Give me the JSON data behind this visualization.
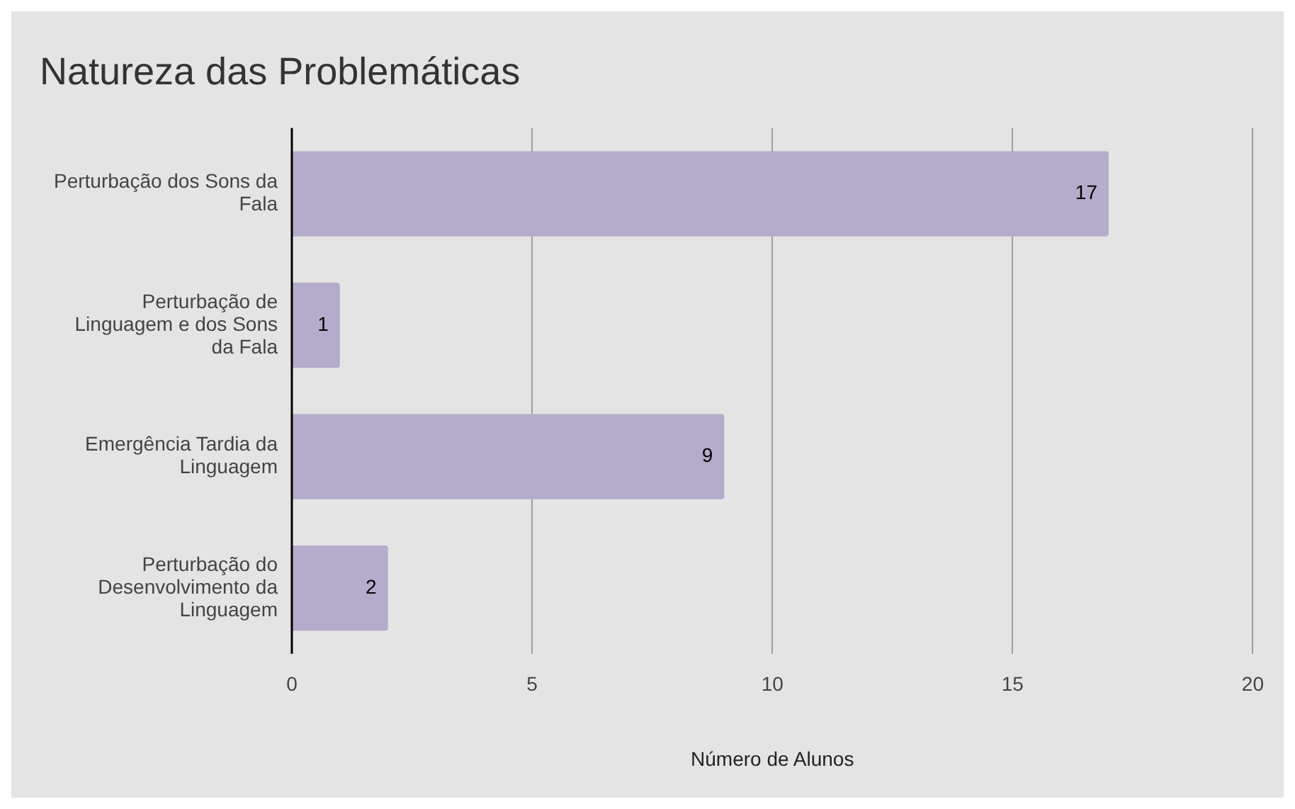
{
  "chart_data": {
    "type": "bar",
    "orientation": "horizontal",
    "title": "Natureza das Problemáticas",
    "xlabel": "Número de Alunos",
    "categories": [
      "Perturbação dos Sons da Fala",
      "Perturbação de Linguagem e dos Sons da Fala",
      "Emergência Tardia da Linguagem",
      "Perturbação do Desenvolvimento da Linguagem"
    ],
    "values": [
      17,
      1,
      9,
      2
    ],
    "color": "#b4acca",
    "xlim": [
      0,
      20
    ],
    "xticks": [
      0,
      5,
      10,
      15,
      20
    ],
    "grid": "x",
    "data_labels": true,
    "legend": false
  }
}
